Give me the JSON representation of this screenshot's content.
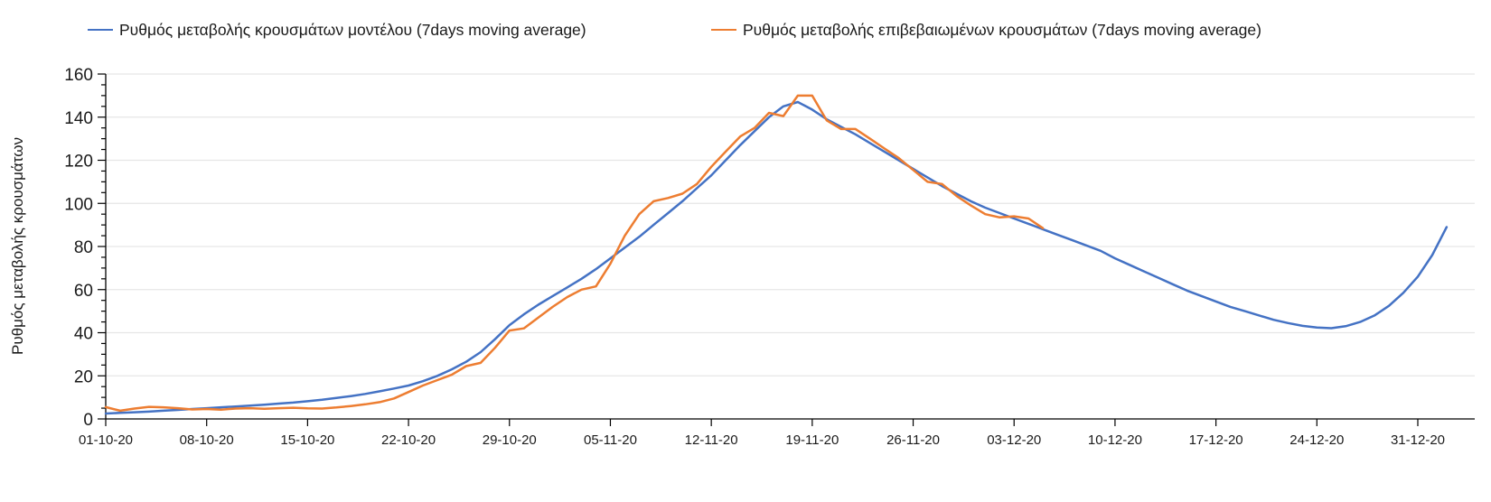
{
  "legend": {
    "items": [
      {
        "label": "Ρυθμός μεταβολής κρουσμάτων μοντέλου (7days moving average)",
        "color": "#4472C4"
      },
      {
        "label": "Ρυθμός μεταβολής επιβεβαιωμένων κρουσμάτων (7days moving average)",
        "color": "#ED7D31"
      }
    ]
  },
  "chart_data": {
    "type": "line",
    "title": "",
    "xlabel": "",
    "ylabel": "Ρυθμός μεταβολής κρουσμάτων",
    "ylim": [
      0,
      160
    ],
    "y_tick_step": 20,
    "y_minor_tick_step": 5,
    "grid": "horizontal-major-only",
    "legend_position": "top",
    "x_unit": "days since 01-10-2020, daily points",
    "x_tick_days": [
      0,
      7,
      14,
      21,
      28,
      35,
      42,
      49,
      56,
      63,
      70,
      77,
      84,
      91
    ],
    "x_tick_labels": [
      "01-10-20",
      "08-10-20",
      "15-10-20",
      "22-10-20",
      "29-10-20",
      "05-11-20",
      "12-11-20",
      "19-11-20",
      "26-11-20",
      "03-12-20",
      "10-12-20",
      "17-12-20",
      "24-12-20",
      "31-12-20"
    ],
    "series": [
      {
        "name": "Ρυθμός μεταβολής κρουσμάτων μοντέλου (7days moving average)",
        "color": "#4472C4",
        "start_day": 0,
        "step_days": 1,
        "values": [
          2.5,
          2.8,
          3.1,
          3.4,
          3.8,
          4.2,
          4.6,
          5.0,
          5.4,
          5.8,
          6.2,
          6.6,
          7.1,
          7.6,
          8.2,
          8.9,
          9.7,
          10.6,
          11.6,
          12.8,
          14.1,
          15.5,
          17.5,
          20.0,
          23.0,
          26.5,
          31.0,
          37.0,
          43.5,
          48.5,
          53.0,
          57.0,
          61.0,
          65.0,
          69.5,
          74.5,
          79.5,
          84.5,
          90.0,
          95.5,
          101.0,
          107.0,
          113.0,
          120.0,
          127.0,
          133.5,
          140.0,
          145.0,
          147.0,
          143.5,
          139.0,
          135.5,
          132.0,
          128.0,
          124.0,
          120.0,
          116.0,
          112.0,
          108.0,
          104.5,
          101.0,
          98.0,
          95.5,
          93.0,
          90.5,
          88.0,
          85.5,
          83.0,
          80.5,
          78.0,
          74.5,
          71.5,
          68.5,
          65.5,
          62.5,
          59.5,
          57.0,
          54.5,
          52.0,
          50.0,
          48.0,
          46.0,
          44.5,
          43.2,
          42.4,
          42.1,
          43.0,
          45.0,
          48.0,
          52.5,
          58.5,
          66.0,
          76.0,
          89.0
        ]
      },
      {
        "name": "Ρυθμός μεταβολής επιβεβαιωμένων κρουσμάτων (7days moving average)",
        "color": "#ED7D31",
        "start_day": 0,
        "step_days": 1,
        "values": [
          5.5,
          3.8,
          4.8,
          5.6,
          5.4,
          5.0,
          4.4,
          4.6,
          4.3,
          4.8,
          5.0,
          4.7,
          5.0,
          5.2,
          4.9,
          4.8,
          5.3,
          6.0,
          6.8,
          7.8,
          9.5,
          12.5,
          15.5,
          18.0,
          20.5,
          24.5,
          26.0,
          33.0,
          41.0,
          42.0,
          47.0,
          52.0,
          56.5,
          60.0,
          61.5,
          72.0,
          85.0,
          95.0,
          101.0,
          102.5,
          104.5,
          109.0,
          117.0,
          124.0,
          131.0,
          135.0,
          142.0,
          140.5,
          150.0,
          150.0,
          138.5,
          134.5,
          134.5,
          130.0,
          125.5,
          121.0,
          115.5,
          110.0,
          109.0,
          103.5,
          99.0,
          95.0,
          93.5,
          94.0,
          93.0,
          88.5
        ]
      }
    ],
    "axis_color": "#000000",
    "gridline_color": "#E6E6E6",
    "tick_label_color": "#1a1a1a"
  }
}
